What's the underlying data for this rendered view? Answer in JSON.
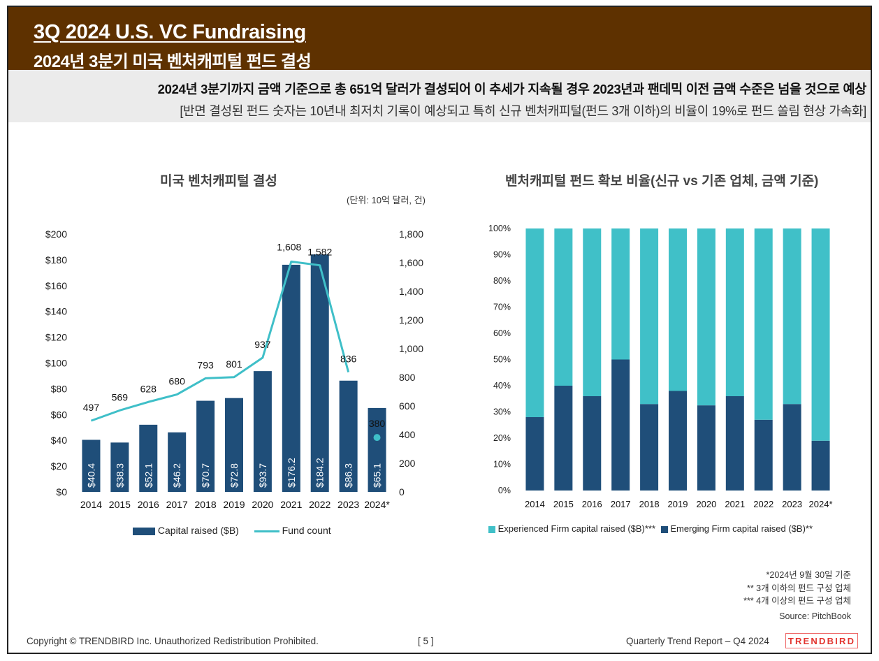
{
  "header": {
    "title": "3Q 2024 U.S. VC Fundraising",
    "subtitle": "2024년 3분기 미국 벤처캐피털 펀드 결성"
  },
  "summary": {
    "line1": "2024년 3분기까지 금액 기준으로 총 651억 달러가 결성되어 이 추세가 지속될 경우 2023년과 팬데믹 이전 금액 수준은 넘을 것으로 예상",
    "line2": "[반면 결성된 펀드 숫자는 10년내 최저치 기록이 예상되고 특히 신규 벤처캐피털(펀드 3개 이하)의 비율이 19%로 펀드 쏠림 현상 가속화]"
  },
  "left_chart": {
    "title": "미국 벤처캐피털 결성",
    "unit": "(단위: 10억 달러, 건)",
    "legend_bar": "Capital raised ($B)",
    "legend_line": "Fund count"
  },
  "right_chart": {
    "title": "벤처캐피털 펀드 확보 비율(신규 vs 기존 업체, 금액 기준)",
    "legend_experienced": "Experienced Firm capital raised ($B)***",
    "legend_emerging": "Emerging Firm capital raised ($B)**"
  },
  "notes": {
    "n1": "*2024년 9월 30일 기준",
    "n2": "** 3개 이하의 펀드 구성 업체",
    "n3": "*** 4개 이상의 펀드 구성 업체",
    "source": "Source: PitchBook"
  },
  "footer": {
    "copyright": "Copyright © TRENDBIRD Inc. Unauthorized Redistribution Prohibited.",
    "page": "[ 5 ]",
    "report": "Quarterly Trend Report – Q4 2024",
    "brand": "TRENDBIRD"
  },
  "colors": {
    "banner": "#5e3100",
    "bar_navy": "#1f4e79",
    "line_teal": "#3fbfc8",
    "experienced_teal": "#40c0c8",
    "emerging_navy": "#1f4e79"
  },
  "chart_data": [
    {
      "type": "bar",
      "title": "미국 벤처캐피털 결성",
      "categories": [
        "2014",
        "2015",
        "2016",
        "2017",
        "2018",
        "2019",
        "2020",
        "2021",
        "2022",
        "2023",
        "2024*"
      ],
      "series": [
        {
          "name": "Capital raised ($B)",
          "type": "bar",
          "axis": "left",
          "values": [
            40.4,
            38.3,
            52.1,
            46.2,
            70.7,
            72.8,
            93.7,
            176.2,
            184.2,
            86.3,
            65.1
          ],
          "labels": [
            "$40.4",
            "$38.3",
            "$52.1",
            "$46.2",
            "$70.7",
            "$72.8",
            "$93.7",
            "$176.2",
            "$184.2",
            "$86.3",
            "$65.1"
          ]
        },
        {
          "name": "Fund count",
          "type": "line",
          "axis": "right",
          "values": [
            497,
            569,
            628,
            680,
            793,
            801,
            937,
            1608,
            1582,
            836,
            380
          ],
          "labels": [
            "497",
            "569",
            "628",
            "680",
            "793",
            "801",
            "937",
            "1,608",
            "1,582",
            "836",
            "380"
          ]
        }
      ],
      "y_left": {
        "ticks": [
          "$0",
          "$20",
          "$40",
          "$60",
          "$80",
          "$100",
          "$120",
          "$140",
          "$160",
          "$180",
          "$200"
        ],
        "lim": [
          0,
          200
        ]
      },
      "y_right": {
        "ticks": [
          "0",
          "200",
          "400",
          "600",
          "800",
          "1,000",
          "1,200",
          "1,400",
          "1,600",
          "1,800"
        ],
        "lim": [
          0,
          1800
        ]
      },
      "grid": false,
      "legend": "bottom"
    },
    {
      "type": "bar",
      "stacked": true,
      "title": "벤처캐피털 펀드 확보 비율(신규 vs 기존 업체, 금액 기준)",
      "categories": [
        "2014",
        "2015",
        "2016",
        "2017",
        "2018",
        "2019",
        "2020",
        "2021",
        "2022",
        "2023",
        "2024*"
      ],
      "series": [
        {
          "name": "Emerging Firm capital raised ($B)**",
          "values": [
            28,
            40,
            36,
            50,
            33,
            38,
            32.5,
            36,
            27,
            33,
            19
          ]
        },
        {
          "name": "Experienced Firm capital raised ($B)***",
          "values": [
            72,
            60,
            64,
            50,
            67,
            62,
            67.5,
            64,
            73,
            67,
            81
          ]
        }
      ],
      "y": {
        "ticks": [
          "0%",
          "10%",
          "20%",
          "30%",
          "40%",
          "50%",
          "60%",
          "70%",
          "80%",
          "90%",
          "100%"
        ],
        "lim": [
          0,
          100
        ]
      },
      "grid": false,
      "legend": "bottom"
    }
  ]
}
